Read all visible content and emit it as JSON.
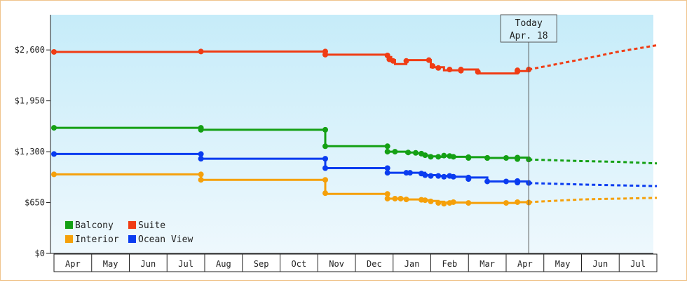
{
  "chart_data": {
    "type": "line",
    "title": "",
    "xlabel": "",
    "ylabel": "",
    "y_ticks": [
      "$0",
      "$650",
      "$1,300",
      "$1,950",
      "$2,600"
    ],
    "y_tick_values": [
      0,
      650,
      1300,
      1950,
      2600
    ],
    "ylim": [
      0,
      3050
    ],
    "x_month_labels": [
      "Apr",
      "May",
      "Jun",
      "Jul",
      "Aug",
      "Sep",
      "Oct",
      "Nov",
      "Dec",
      "Jan",
      "Feb",
      "Mar",
      "Apr",
      "May",
      "Jun",
      "Jul"
    ],
    "x_range_months": [
      0,
      16
    ],
    "grid": false,
    "legend_position": "bottom-left",
    "today": {
      "line1": "Today",
      "line2": "Apr. 18",
      "month_index": 12.6
    },
    "series": [
      {
        "name": "Balcony",
        "color": "#14a014",
        "steps": [
          [
            0.0,
            1605
          ],
          [
            3.9,
            1605
          ],
          [
            3.9,
            1580
          ],
          [
            7.2,
            1580
          ],
          [
            7.2,
            1370
          ],
          [
            8.85,
            1370
          ],
          [
            8.85,
            1300
          ],
          [
            9.05,
            1300
          ],
          [
            9.35,
            1290
          ],
          [
            9.6,
            1280
          ],
          [
            9.75,
            1270
          ],
          [
            9.85,
            1250
          ],
          [
            10.0,
            1240
          ],
          [
            10.2,
            1235
          ],
          [
            10.35,
            1245
          ],
          [
            10.5,
            1240
          ],
          [
            10.6,
            1235
          ],
          [
            11.0,
            1230
          ],
          [
            11.5,
            1220
          ],
          [
            12.0,
            1220
          ],
          [
            12.3,
            1225
          ],
          [
            12.6,
            1200
          ]
        ],
        "markers": [
          [
            0.0,
            1605
          ],
          [
            3.9,
            1605
          ],
          [
            3.9,
            1580
          ],
          [
            7.2,
            1580
          ],
          [
            7.2,
            1370
          ],
          [
            8.85,
            1370
          ],
          [
            8.85,
            1300
          ],
          [
            9.05,
            1300
          ],
          [
            9.4,
            1290
          ],
          [
            9.6,
            1285
          ],
          [
            9.75,
            1275
          ],
          [
            9.85,
            1255
          ],
          [
            10.0,
            1235
          ],
          [
            10.2,
            1235
          ],
          [
            10.35,
            1250
          ],
          [
            10.5,
            1245
          ],
          [
            10.6,
            1235
          ],
          [
            11.0,
            1230
          ],
          [
            11.0,
            1220
          ],
          [
            11.5,
            1220
          ],
          [
            11.5,
            1220
          ],
          [
            12.0,
            1220
          ],
          [
            12.3,
            1225
          ],
          [
            12.3,
            1205
          ],
          [
            12.6,
            1200
          ]
        ],
        "forecast": [
          [
            12.6,
            1200
          ],
          [
            14.0,
            1180
          ],
          [
            15.0,
            1170
          ],
          [
            16.0,
            1150
          ]
        ]
      },
      {
        "name": "Suite",
        "color": "#f03c14",
        "steps": [
          [
            0.0,
            2575
          ],
          [
            3.9,
            2575
          ],
          [
            3.9,
            2580
          ],
          [
            7.2,
            2580
          ],
          [
            7.2,
            2540
          ],
          [
            8.85,
            2540
          ],
          [
            8.85,
            2510
          ],
          [
            8.95,
            2470
          ],
          [
            9.05,
            2420
          ],
          [
            9.35,
            2470
          ],
          [
            10.0,
            2470
          ],
          [
            10.0,
            2380
          ],
          [
            10.2,
            2380
          ],
          [
            10.35,
            2340
          ],
          [
            10.8,
            2340
          ],
          [
            10.8,
            2350
          ],
          [
            11.25,
            2350
          ],
          [
            11.25,
            2300
          ],
          [
            12.3,
            2300
          ],
          [
            12.3,
            2330
          ],
          [
            12.6,
            2350
          ]
        ],
        "markers": [
          [
            0.0,
            2575
          ],
          [
            3.9,
            2580
          ],
          [
            7.2,
            2580
          ],
          [
            7.2,
            2540
          ],
          [
            8.85,
            2530
          ],
          [
            8.9,
            2480
          ],
          [
            9.0,
            2460
          ],
          [
            9.35,
            2460
          ],
          [
            9.95,
            2470
          ],
          [
            10.05,
            2395
          ],
          [
            10.2,
            2370
          ],
          [
            10.5,
            2350
          ],
          [
            10.8,
            2350
          ],
          [
            10.8,
            2335
          ],
          [
            11.25,
            2320
          ],
          [
            12.3,
            2325
          ],
          [
            12.3,
            2340
          ],
          [
            12.6,
            2350
          ]
        ],
        "forecast": [
          [
            12.6,
            2350
          ],
          [
            14.0,
            2480
          ],
          [
            15.0,
            2580
          ],
          [
            16.0,
            2660
          ]
        ]
      },
      {
        "name": "Interior",
        "color": "#f5a00a",
        "steps": [
          [
            0.0,
            1010
          ],
          [
            3.9,
            1010
          ],
          [
            3.9,
            940
          ],
          [
            7.2,
            940
          ],
          [
            7.2,
            760
          ],
          [
            8.85,
            760
          ],
          [
            8.85,
            700
          ],
          [
            9.05,
            700
          ],
          [
            9.35,
            690
          ],
          [
            9.75,
            690
          ],
          [
            9.85,
            680
          ],
          [
            10.0,
            670
          ],
          [
            10.2,
            660
          ],
          [
            10.35,
            650
          ],
          [
            10.5,
            650
          ],
          [
            10.6,
            650
          ],
          [
            11.0,
            645
          ],
          [
            11.5,
            645
          ],
          [
            12.0,
            645
          ],
          [
            12.3,
            655
          ],
          [
            12.6,
            655
          ]
        ],
        "markers": [
          [
            0.0,
            1010
          ],
          [
            3.9,
            1010
          ],
          [
            3.9,
            940
          ],
          [
            7.2,
            940
          ],
          [
            7.2,
            770
          ],
          [
            8.85,
            760
          ],
          [
            8.85,
            700
          ],
          [
            9.05,
            700
          ],
          [
            9.2,
            700
          ],
          [
            9.35,
            690
          ],
          [
            9.75,
            685
          ],
          [
            9.85,
            680
          ],
          [
            10.0,
            665
          ],
          [
            10.2,
            645
          ],
          [
            10.35,
            635
          ],
          [
            10.5,
            645
          ],
          [
            10.6,
            655
          ],
          [
            11.0,
            645
          ],
          [
            12.0,
            645
          ],
          [
            12.3,
            655
          ],
          [
            12.6,
            650
          ]
        ],
        "forecast": [
          [
            12.6,
            655
          ],
          [
            14.0,
            690
          ],
          [
            15.0,
            700
          ],
          [
            16.0,
            710
          ]
        ]
      },
      {
        "name": "Ocean View",
        "color": "#0a3cf0",
        "steps": [
          [
            0.0,
            1270
          ],
          [
            3.9,
            1270
          ],
          [
            3.9,
            1210
          ],
          [
            7.2,
            1210
          ],
          [
            7.2,
            1090
          ],
          [
            8.85,
            1090
          ],
          [
            8.85,
            1030
          ],
          [
            9.35,
            1030
          ],
          [
            9.75,
            1030
          ],
          [
            9.85,
            1000
          ],
          [
            10.2,
            990
          ],
          [
            10.5,
            980
          ],
          [
            11.0,
            970
          ],
          [
            11.5,
            920
          ],
          [
            12.0,
            920
          ],
          [
            12.3,
            920
          ],
          [
            12.6,
            900
          ]
        ],
        "markers": [
          [
            0.0,
            1270
          ],
          [
            3.9,
            1270
          ],
          [
            3.9,
            1210
          ],
          [
            7.2,
            1210
          ],
          [
            7.2,
            1090
          ],
          [
            8.85,
            1090
          ],
          [
            8.85,
            1030
          ],
          [
            9.35,
            1030
          ],
          [
            9.45,
            1030
          ],
          [
            9.75,
            1020
          ],
          [
            9.85,
            1000
          ],
          [
            10.0,
            990
          ],
          [
            10.2,
            990
          ],
          [
            10.35,
            980
          ],
          [
            10.5,
            990
          ],
          [
            10.6,
            980
          ],
          [
            11.0,
            970
          ],
          [
            11.0,
            950
          ],
          [
            11.5,
            920
          ],
          [
            12.0,
            920
          ],
          [
            12.3,
            925
          ],
          [
            12.3,
            905
          ],
          [
            12.6,
            900
          ]
        ],
        "forecast": [
          [
            12.6,
            900
          ],
          [
            14.0,
            880
          ],
          [
            15.0,
            870
          ],
          [
            16.0,
            860
          ]
        ]
      }
    ]
  }
}
